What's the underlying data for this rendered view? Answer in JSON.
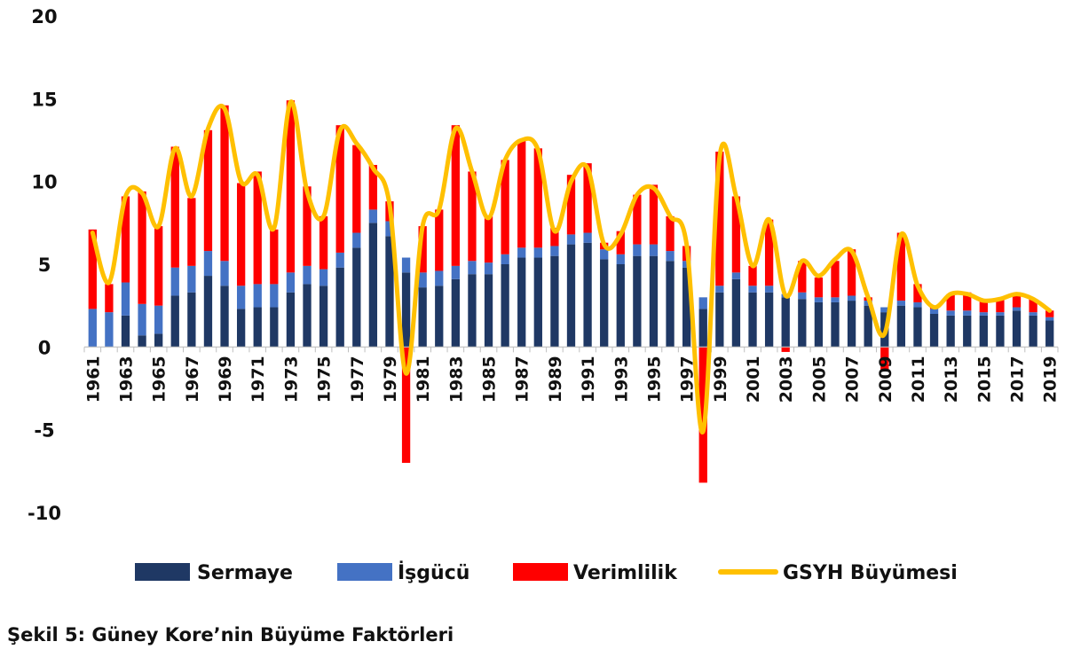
{
  "caption": "Şekil 5: Güney Kore’nin Büyüme Faktörleri",
  "chart_data": {
    "type": "bar",
    "stacked": true,
    "ylim": [
      -10,
      20
    ],
    "yticks": [
      -10,
      -5,
      0,
      5,
      10,
      15,
      20
    ],
    "grid": false,
    "legend_position": "bottom",
    "categories": [
      "1961",
      "1962",
      "1963",
      "1964",
      "1965",
      "1966",
      "1967",
      "1968",
      "1969",
      "1970",
      "1971",
      "1972",
      "1973",
      "1974",
      "1975",
      "1976",
      "1977",
      "1978",
      "1979",
      "1980",
      "1981",
      "1982",
      "1983",
      "1984",
      "1985",
      "1986",
      "1987",
      "1988",
      "1989",
      "1990",
      "1991",
      "1992",
      "1993",
      "1994",
      "1995",
      "1996",
      "1997",
      "1998",
      "1999",
      "2000",
      "2001",
      "2002",
      "2003",
      "2004",
      "2005",
      "2006",
      "2007",
      "2008",
      "2009",
      "2010",
      "2011",
      "2012",
      "2013",
      "2014",
      "2015",
      "2016",
      "2017",
      "2018",
      "2019"
    ],
    "xtick_labels": [
      "1961",
      "1963",
      "1965",
      "1967",
      "1969",
      "1971",
      "1973",
      "1975",
      "1977",
      "1979",
      "1981",
      "1983",
      "1985",
      "1987",
      "1989",
      "1991",
      "1993",
      "1995",
      "1997",
      "1999",
      "2001",
      "2003",
      "2005",
      "2007",
      "2009",
      "2011",
      "2013",
      "2015",
      "2017",
      "2019"
    ],
    "series": [
      {
        "name": "Sermaye",
        "kind": "bar",
        "color": "#1f3864",
        "values": [
          0,
          0,
          1.9,
          0.7,
          0.8,
          3.1,
          3.3,
          4.3,
          3.7,
          2.3,
          2.4,
          2.4,
          3.3,
          3.8,
          3.7,
          4.8,
          6.0,
          7.5,
          6.7,
          4.5,
          3.6,
          3.7,
          4.1,
          4.4,
          4.4,
          5.0,
          5.4,
          5.4,
          5.5,
          6.2,
          6.3,
          5.3,
          5.0,
          5.5,
          5.5,
          5.2,
          4.8,
          2.3,
          3.3,
          4.1,
          3.3,
          3.3,
          3.0,
          2.9,
          2.7,
          2.7,
          2.8,
          2.5,
          2.1,
          2.5,
          2.4,
          2.0,
          1.9,
          1.9,
          1.9,
          1.9,
          2.2,
          1.9,
          1.6
        ]
      },
      {
        "name": "İşgücü",
        "kind": "bar",
        "color": "#4472c4",
        "values": [
          2.3,
          2.1,
          2.0,
          1.9,
          1.7,
          1.7,
          1.6,
          1.5,
          1.5,
          1.4,
          1.4,
          1.4,
          1.2,
          1.1,
          1.0,
          0.9,
          0.9,
          0.8,
          0.9,
          0.9,
          0.9,
          0.9,
          0.8,
          0.8,
          0.7,
          0.6,
          0.6,
          0.6,
          0.6,
          0.6,
          0.6,
          0.6,
          0.6,
          0.7,
          0.7,
          0.6,
          0.4,
          0.7,
          0.4,
          0.4,
          0.4,
          0.4,
          0.2,
          0.4,
          0.3,
          0.3,
          0.3,
          0.3,
          0.3,
          0.3,
          0.3,
          0.3,
          0.3,
          0.3,
          0.2,
          0.2,
          0.2,
          0.2,
          0.2
        ]
      },
      {
        "name": "Verimlilik",
        "kind": "bar",
        "color": "#ff0000",
        "values": [
          4.8,
          1.7,
          5.2,
          6.8,
          4.8,
          7.3,
          4.1,
          7.3,
          9.4,
          6.2,
          6.8,
          3.3,
          10.4,
          4.8,
          3.2,
          7.7,
          5.3,
          2.7,
          1.2,
          -7.0,
          2.8,
          3.7,
          8.5,
          5.4,
          2.8,
          5.7,
          6.5,
          6.0,
          1.1,
          3.6,
          4.2,
          0.4,
          1.4,
          3.0,
          3.6,
          2.1,
          0.9,
          -8.2,
          8.1,
          4.6,
          1.2,
          4.0,
          -0.3,
          1.9,
          1.2,
          2.2,
          2.8,
          0.2,
          -1.4,
          4.1,
          1.1,
          0.1,
          1.0,
          1.1,
          0.7,
          0.8,
          0.8,
          0.8,
          0.4
        ]
      },
      {
        "name": "GSYH Büyümesi",
        "kind": "line",
        "color": "#ffc000",
        "values": [
          6.9,
          3.9,
          9.1,
          9.3,
          7.3,
          12.0,
          9.1,
          13.2,
          14.4,
          10.0,
          10.4,
          7.2,
          14.8,
          9.4,
          7.9,
          13.1,
          12.3,
          10.8,
          8.6,
          -1.6,
          7.3,
          8.3,
          13.2,
          10.6,
          7.8,
          11.3,
          12.5,
          11.9,
          7.0,
          10.0,
          10.8,
          6.2,
          6.8,
          9.2,
          9.6,
          7.9,
          6.2,
          -5.1,
          11.5,
          9.1,
          4.9,
          7.7,
          3.1,
          5.2,
          4.3,
          5.3,
          5.8,
          3.0,
          0.8,
          6.8,
          3.7,
          2.4,
          3.2,
          3.2,
          2.8,
          2.9,
          3.2,
          2.9,
          2.2
        ]
      }
    ]
  }
}
